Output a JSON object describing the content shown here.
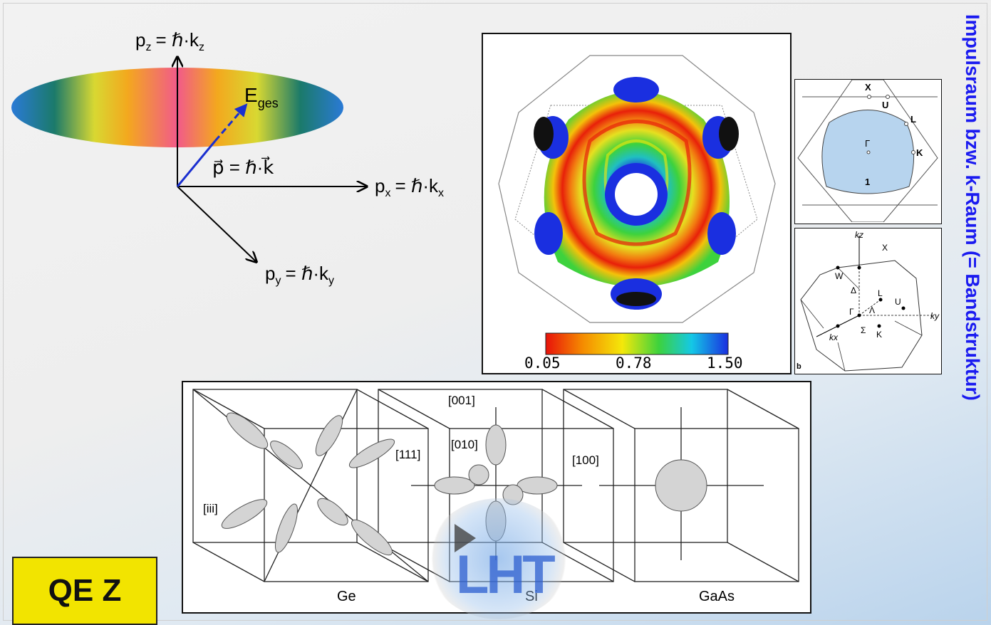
{
  "vector_diagram": {
    "pz_label": "p",
    "pz_sub": "z",
    "pz_rhs": "= ℏ·k",
    "pz_rhs_sub": "z",
    "px_label": "p",
    "px_sub": "x",
    "px_rhs": "= ℏ·k",
    "px_rhs_sub": "x",
    "py_label": "p",
    "py_sub": "y",
    "py_rhs": "= ℏ·k",
    "py_rhs_sub": "y",
    "p_vec_label": "p⃗ = ℏ·k⃗",
    "e_label": "E",
    "e_sub": "ges"
  },
  "fermi_surface": {
    "colorbar_ticks": [
      "0.05",
      "0.78",
      "1.50"
    ],
    "colorbar_colors": [
      "#e8120a",
      "#f58a00",
      "#f4e80a",
      "#3dd23d",
      "#14c8e6",
      "#1a2fe0"
    ]
  },
  "bz_section": {
    "points": [
      "X",
      "U",
      "L",
      "Γ",
      "K",
      "1"
    ]
  },
  "bz_3d": {
    "labels": [
      "kz",
      "X",
      "W",
      "Δ",
      "L",
      "Λ",
      "U",
      "Γ",
      "ky",
      "kx",
      "Σ",
      "K"
    ],
    "panel_tag": "b"
  },
  "valleys": {
    "ge_label": "Ge",
    "si_label": "Si",
    "gaas_label": "GaAs",
    "dir_001": "[001]",
    "dir_010": "[010]",
    "dir_111": "[111]",
    "dir_100": "[100]",
    "dir_iii": "[iii]"
  },
  "logo_text": "LHT",
  "title": "Impulsraum bzw. k-Raum (= Bandstruktur)",
  "badge": "QE Z"
}
